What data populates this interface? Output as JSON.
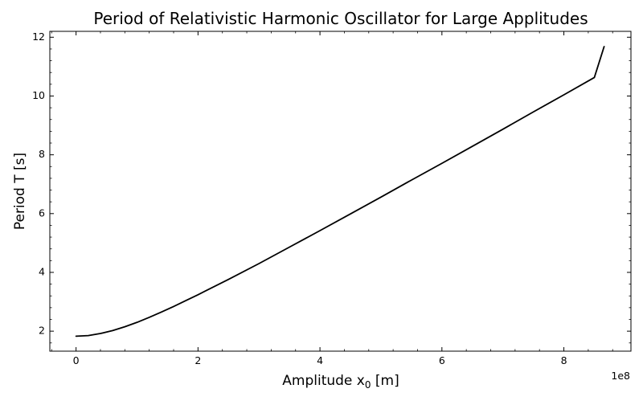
{
  "chart_data": {
    "type": "line",
    "title": "Period of Relativistic Harmonic Oscillator for Large Applitudes",
    "xlabel": {
      "prefix": "Amplitude x",
      "subscript": "0",
      "suffix": " [m]"
    },
    "ylabel": "Period T [s]",
    "x_offset_text": "1e8",
    "x_ticks": [
      0,
      2,
      4,
      6,
      8
    ],
    "y_ticks": [
      2,
      4,
      6,
      8,
      10,
      12
    ],
    "x_tick_labels": [
      "0",
      "2",
      "4",
      "6",
      "8"
    ],
    "y_tick_labels": [
      "2",
      "4",
      "6",
      "8",
      "10",
      "12"
    ],
    "xlim": [
      -0.43,
      9.1
    ],
    "ylim": [
      1.32,
      12.2
    ],
    "grid": false,
    "line_color": "#000000",
    "series": [
      {
        "x": [
          0.0,
          0.2,
          0.4,
          0.6,
          0.8,
          1.0,
          1.2,
          1.4,
          1.6,
          1.8,
          2.0,
          2.5,
          3.0,
          3.5,
          4.0,
          4.5,
          5.0,
          5.5,
          6.0,
          6.5,
          7.0,
          7.5,
          8.0,
          8.5,
          8.66
        ],
        "y": [
          1.83,
          1.85,
          1.92,
          2.02,
          2.15,
          2.3,
          2.47,
          2.65,
          2.84,
          3.04,
          3.24,
          3.76,
          4.3,
          4.86,
          5.42,
          5.99,
          6.56,
          7.14,
          7.71,
          8.29,
          8.87,
          9.46,
          10.04,
          10.63,
          11.68
        ]
      }
    ]
  }
}
